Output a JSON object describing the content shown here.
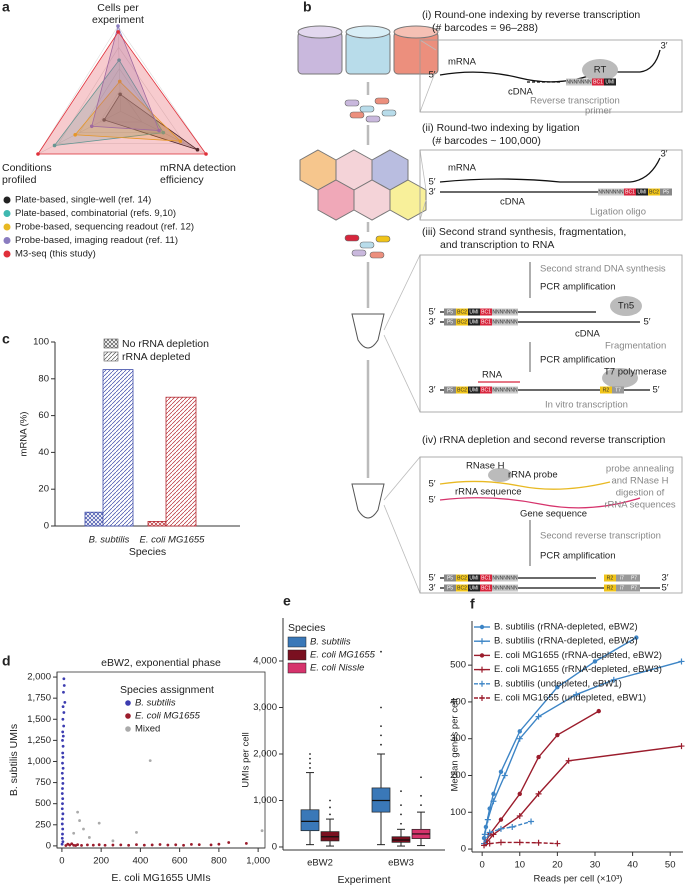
{
  "panel_labels": [
    "a",
    "b",
    "c",
    "d",
    "e",
    "f"
  ],
  "chart_data": [
    {
      "type": "radar",
      "axes": [
        [
          "Cells per",
          "experiment"
        ],
        [
          "Conditions",
          "profiled"
        ],
        [
          "mRNA detection",
          "efficiency"
        ]
      ],
      "rlim": [
        0,
        1
      ],
      "rticks": [
        0.25,
        0.5,
        0.75,
        1
      ],
      "grid": true,
      "series": [
        {
          "name": "Plate-based, single-well (ref. 14)",
          "color": "#222222",
          "values": [
            0.2,
            0.2,
            0.9
          ]
        },
        {
          "name": "Plate-based, combinatorial (refs. 9,10)",
          "color": "#3fb8b0",
          "values": [
            0.6,
            0.8,
            0.5
          ]
        },
        {
          "name": "Probe-based, sequencing readout (ref. 12)",
          "color": "#e8b923",
          "values": [
            0.35,
            0.55,
            0.7
          ]
        },
        {
          "name": "Probe-based, imaging readout (ref. 11)",
          "color": "#8a7cc0",
          "values": [
            1.0,
            0.35,
            0.45
          ]
        },
        {
          "name": "M3-seq (this study)",
          "color": "#e0303a",
          "values": [
            0.93,
            1.0,
            1.0
          ]
        }
      ]
    },
    {
      "type": "bar",
      "categories": [
        "B. subtilis",
        "E. coli MG1655"
      ],
      "colors": [
        "#3b4aa8",
        "#b52a32"
      ],
      "legend_color": "#555555",
      "series": [
        {
          "name": "No rRNA depletion",
          "hatch": "cross",
          "values": [
            7.5,
            2.5
          ]
        },
        {
          "name": "rRNA depleted",
          "hatch": "diagonal",
          "values": [
            85,
            70
          ]
        }
      ],
      "ylabel": "mRNA (%)",
      "xlabel": "Species",
      "ylim": [
        0,
        100
      ],
      "yticks": [
        0,
        20,
        40,
        60,
        80,
        100
      ]
    },
    {
      "type": "scatter",
      "title": "eBW2, exponential phase",
      "legend_title": "Species assignment",
      "xlabel": "E. coli MG1655 UMIs",
      "ylabel": "B. subtilis UMIs",
      "xlim": [
        -25,
        1035
      ],
      "ylim": [
        -25,
        2060
      ],
      "xticks": [
        0,
        200,
        400,
        600,
        800,
        {
          "value": 1000,
          "label": "1,000"
        }
      ],
      "yticks": [
        0,
        250,
        500,
        750,
        {
          "value": 1000,
          "label": "1,000"
        },
        {
          "value": 1250,
          "label": "1,250"
        },
        {
          "value": 1500,
          "label": "1,500"
        },
        {
          "value": 1750,
          "label": "1,750"
        },
        {
          "value": 2000,
          "label": "2,000"
        }
      ],
      "series": [
        {
          "name": "B. subtilis",
          "color": "#3c3cb0",
          "x": [
            10,
            12,
            8,
            15,
            6,
            10,
            5,
            9,
            4,
            7,
            3,
            6,
            4,
            5,
            3,
            6,
            2,
            4,
            5,
            3,
            2,
            4,
            3,
            2,
            5,
            3,
            2,
            4,
            3,
            2,
            5,
            1
          ],
          "values": [
            1980,
            1900,
            1820,
            1700,
            1650,
            1580,
            1500,
            1420,
            1350,
            1300,
            1250,
            1180,
            1100,
            1050,
            980,
            920,
            860,
            800,
            740,
            680,
            620,
            560,
            500,
            440,
            380,
            320,
            260,
            200,
            140,
            90,
            50,
            20
          ]
        },
        {
          "name": "E. coli MG1655",
          "color": "#9b1c2c",
          "x": [
            20,
            40,
            60,
            80,
            100,
            130,
            160,
            190,
            220,
            260,
            300,
            340,
            380,
            420,
            460,
            500,
            540,
            580,
            620,
            660,
            700,
            760,
            800,
            850,
            940,
            30,
            50,
            70
          ],
          "values": [
            5,
            10,
            8,
            15,
            6,
            12,
            9,
            14,
            7,
            10,
            12,
            8,
            15,
            9,
            11,
            16,
            10,
            13,
            8,
            18,
            15,
            12,
            20,
            40,
            30,
            20,
            25,
            5
          ]
        },
        {
          "name": "Mixed",
          "color": "#aaaaaa",
          "x": [
            260,
            450,
            190,
            90,
            80,
            140,
            60,
            1020,
            380,
            110
          ],
          "values": [
            60,
            1010,
            270,
            300,
            400,
            100,
            150,
            180,
            160,
            200
          ]
        }
      ]
    },
    {
      "type": "box",
      "legend_title": "Species",
      "categories": [
        "eBW2",
        "eBW3"
      ],
      "ylabel": "UMIs per cell",
      "xlabel": "Experiment",
      "ylim": [
        -65,
        4925
      ],
      "yticks": [
        0,
        {
          "value": 1000,
          "label": "1,000"
        },
        {
          "value": 2000,
          "label": "2,000"
        },
        {
          "value": 3000,
          "label": "3,000"
        },
        {
          "value": 4000,
          "label": "4,000"
        }
      ],
      "series": [
        {
          "name": "B. subtilis",
          "color": "#3a78b8",
          "values": [
            {
              "min": 50,
              "q1": 350,
              "median": 550,
              "q3": 800,
              "max": 1600,
              "outliers": [
                1700,
                1800,
                1900,
                2000
              ]
            },
            {
              "min": 50,
              "q1": 750,
              "median": 1000,
              "q3": 1270,
              "max": 2000,
              "outliers": [
                2200,
                2400,
                2600,
                3000,
                4200
              ]
            }
          ]
        },
        {
          "name": "E. coli MG1655",
          "color": "#7a1020",
          "values": [
            {
              "min": 20,
              "q1": 130,
              "median": 220,
              "q3": 330,
              "max": 600,
              "outliers": [
                700,
                850,
                1000
              ]
            },
            {
              "min": 20,
              "q1": 100,
              "median": 150,
              "q3": 220,
              "max": 380,
              "outliers": [
                500,
                700,
                900,
                1200
              ]
            }
          ]
        },
        {
          "name": "E. coli Nissle",
          "color": "#d6336c",
          "values": [
            null,
            {
              "min": 30,
              "q1": 180,
              "median": 280,
              "q3": 380,
              "max": 750,
              "outliers": [
                900,
                1100,
                1500
              ]
            }
          ]
        }
      ]
    },
    {
      "type": "line",
      "ylabel": "Median genes per cell",
      "xlabel": "Reads per cell (×10³)",
      "xlim": [
        -2.7,
        53.4
      ],
      "ylim": [
        -8,
        620
      ],
      "xticks": [
        0,
        10,
        20,
        30,
        40,
        50
      ],
      "yticks": [
        0,
        100,
        200,
        300,
        400,
        500
      ],
      "series": [
        {
          "name": "B. subtilis (rRNA-depleted, eBW2)",
          "color": "#3d85c6",
          "marker": "dot",
          "dashed": false,
          "x": [
            0.5,
            1,
            2,
            3,
            5,
            10,
            20,
            30,
            41
          ],
          "values": [
            30,
            60,
            110,
            150,
            210,
            320,
            440,
            510,
            575
          ]
        },
        {
          "name": "B. subtilis (rRNA-depleted, eBW3)",
          "color": "#3d85c6",
          "marker": "plus",
          "dashed": false,
          "x": [
            0.7,
            1.5,
            3,
            6,
            10,
            15,
            25,
            35,
            53
          ],
          "values": [
            40,
            80,
            130,
            200,
            300,
            360,
            420,
            460,
            510
          ]
        },
        {
          "name": "E. coli MG1655 (rRNA-depleted, eBW2)",
          "color": "#9b1c2c",
          "marker": "dot",
          "dashed": false,
          "x": [
            1,
            2,
            5,
            10,
            15,
            20,
            31
          ],
          "values": [
            20,
            40,
            80,
            150,
            250,
            310,
            375
          ]
        },
        {
          "name": "E. coli MG1655 (rRNA-depleted, eBW3)",
          "color": "#9b1c2c",
          "marker": "plus",
          "dashed": false,
          "x": [
            1,
            3,
            10,
            15,
            23,
            53
          ],
          "values": [
            15,
            40,
            90,
            150,
            240,
            280
          ]
        },
        {
          "name": "B. subtilis (undepleted, eBW1)",
          "color": "#3d85c6",
          "marker": "plus",
          "dashed": true,
          "x": [
            0.5,
            2,
            5,
            8,
            13
          ],
          "values": [
            15,
            45,
            55,
            60,
            75
          ]
        },
        {
          "name": "E. coli MG1655 (undepleted, eBW1)",
          "color": "#9b1c2c",
          "marker": "plus",
          "dashed": true,
          "x": [
            0.5,
            2,
            5,
            10,
            15,
            20
          ],
          "values": [
            10,
            15,
            18,
            18,
            17,
            15
          ]
        }
      ]
    }
  ],
  "diagram": {
    "steps": [
      {
        "title": "(i) Round-one indexing by reverse transcription",
        "subtitle": "(# barcodes = 96–288)",
        "labels": [
          "mRNA",
          "RT",
          "cDNA",
          "Reverse transcription",
          "primer"
        ]
      },
      {
        "title": "(ii) Round-two indexing by ligation",
        "subtitle": "(# barcodes ~ 100,000)",
        "labels": [
          "mRNA",
          "cDNA",
          "Ligation oligo"
        ]
      },
      {
        "title": "(iii) Second strand synthesis, fragmentation,",
        "subtitle": "and transcription to RNA",
        "labels": [
          "Second strand DNA synthesis",
          "PCR amplification",
          "Tn5",
          "cDNA",
          "Fragmentation",
          "PCR amplification",
          "RNA",
          "T7 polymerase",
          "In vitro transcription"
        ]
      },
      {
        "title": "(iv) rRNA depletion and second reverse transcription",
        "labels": [
          "RNase H",
          "rRNA probe",
          "probe annealing",
          "and RNase H",
          "digestion of",
          "rRNA sequences",
          "rRNA sequence",
          "Gene sequence",
          "Second reverse transcription",
          "PCR amplification"
        ]
      }
    ],
    "ends": [
      "5′",
      "3′"
    ],
    "segments": [
      "NNNNNNN",
      "BC1",
      "UMI",
      "BC2",
      "P5",
      "R2",
      "T7",
      "i7",
      "P7"
    ]
  }
}
